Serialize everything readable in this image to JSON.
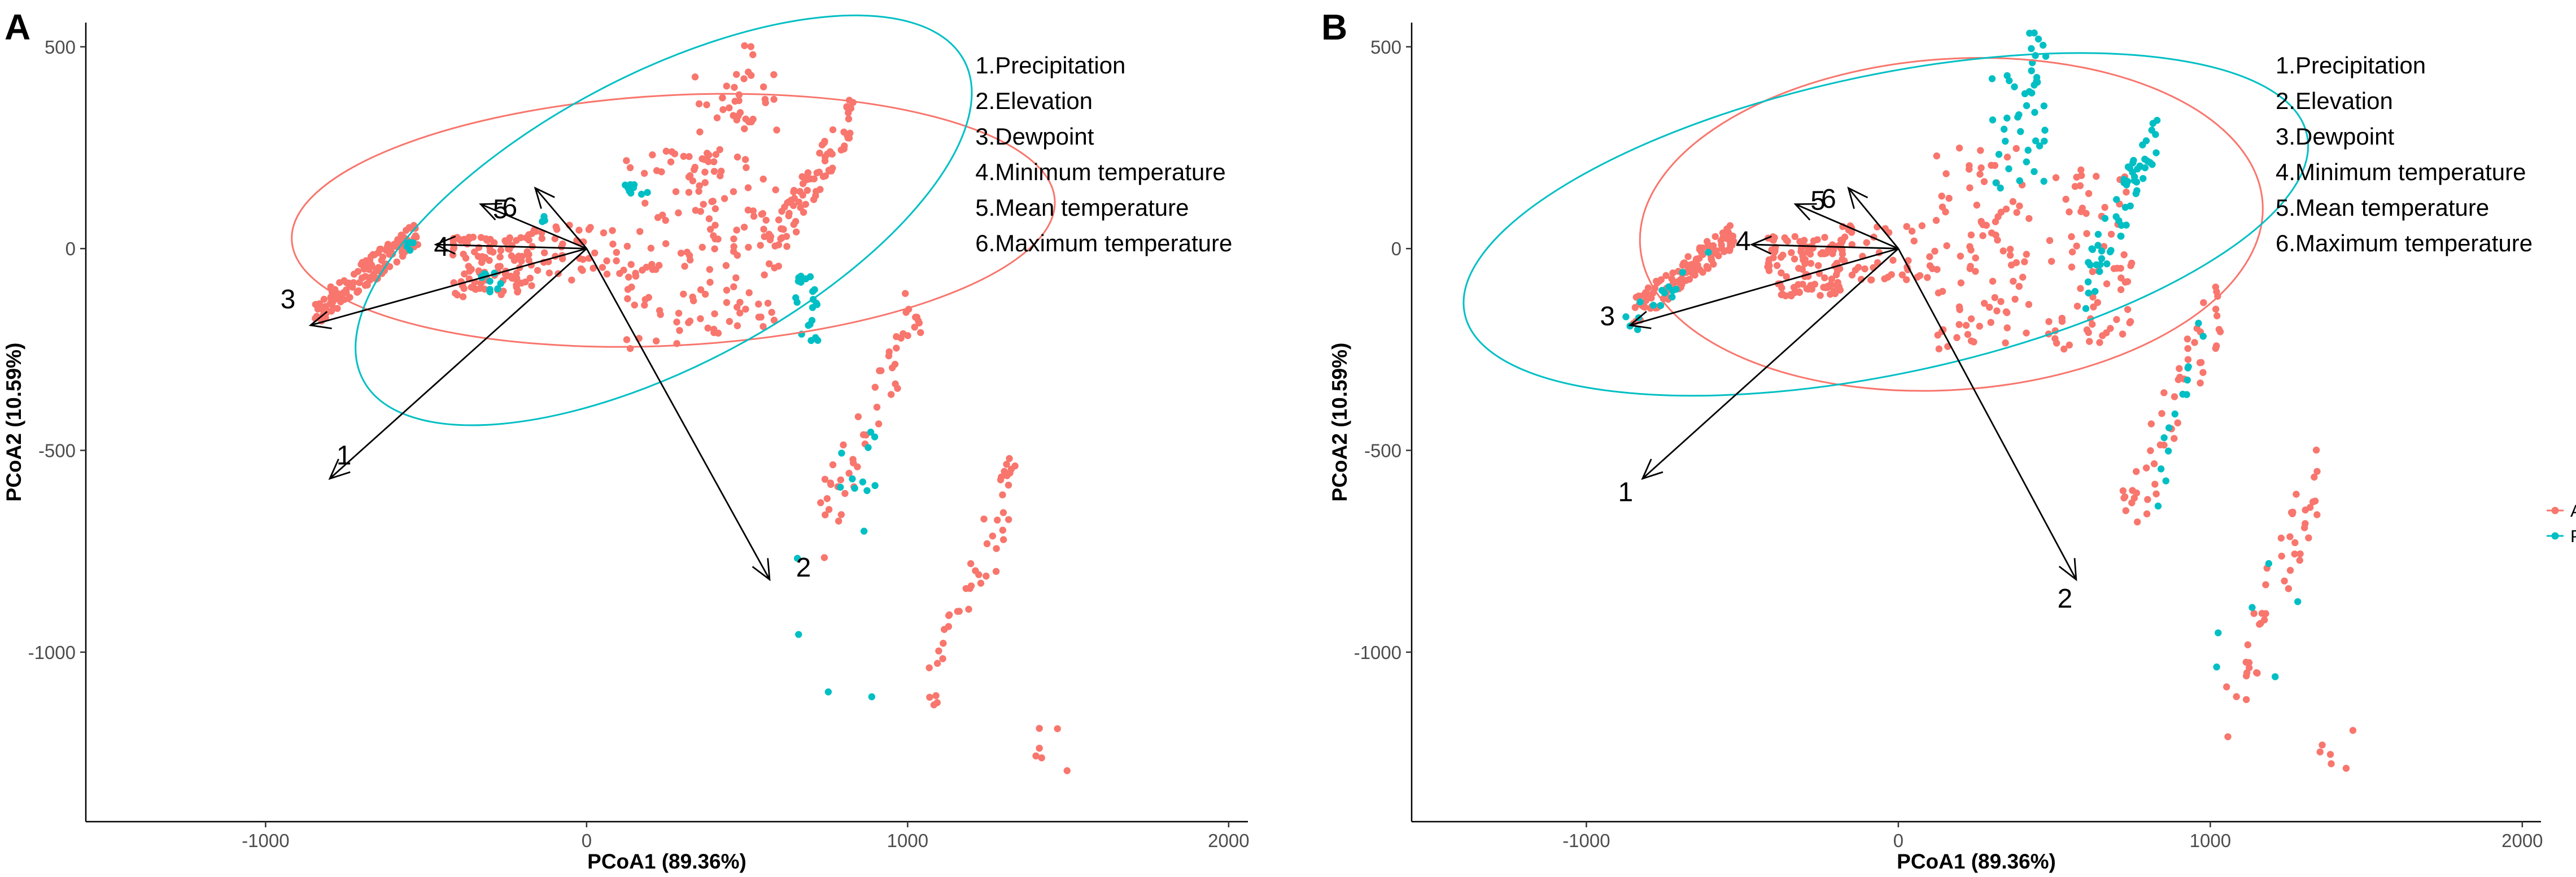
{
  "chart_data": [
    {
      "panel": "A",
      "type": "scatter",
      "xlabel": "PCoA1 (89.36%)",
      "ylabel": "PCoA2 (10.59%)",
      "xlim": [
        -1560,
        2060
      ],
      "ylim": [
        -1420,
        560
      ],
      "xticks": [
        -1000,
        0,
        1000,
        2000
      ],
      "yticks": [
        500,
        0,
        -500,
        -1000
      ],
      "xtick_labels": [
        "-1000",
        "0",
        "1000",
        "2000"
      ],
      "ytick_labels": [
        "500",
        "0",
        "-500",
        "-1000"
      ],
      "variable_legend": [
        "1.Precipitation",
        "2.Elevation",
        "3.Dewpoint",
        "4.Minimum temperature",
        "5.Mean temperature",
        "6.Maximum temperature"
      ],
      "arrows": [
        {
          "label": "1",
          "x": -800,
          "y": -570
        },
        {
          "label": "2",
          "x": 570,
          "y": -820
        },
        {
          "label": "3",
          "x": -860,
          "y": -190
        },
        {
          "label": "4",
          "x": -470,
          "y": 10
        },
        {
          "label": "5",
          "x": -330,
          "y": 110
        },
        {
          "label": "6",
          "x": -160,
          "y": 150
        }
      ],
      "arrow_label_offsets": {
        "1": [
          25,
          -25
        ],
        "2": [
          60,
          -5
        ],
        "3": [
          -40,
          -30
        ],
        "4": [
          10,
          20
        ],
        "5": [
          35,
          25
        ],
        "6": [
          -45,
          50
        ]
      },
      "ellipses": [
        {
          "group": "Absent",
          "cx": 270,
          "cy": 70,
          "rx": 1190,
          "ry": 310,
          "angle": -3
        },
        {
          "group": "Present",
          "cx": 240,
          "cy": 70,
          "rx": 1060,
          "ry": 360,
          "angle": -28
        }
      ],
      "series": [
        {
          "name": "Absent",
          "color": "#F8766D",
          "clusters": [
            {
              "x": [
                -850,
                -520
              ],
              "y": [
                -160,
                40
              ],
              "n": 130,
              "trend": true
            },
            {
              "x": [
                -420,
                -170
              ],
              "y": [
                -120,
                30
              ],
              "n": 110
            },
            {
              "x": [
                -200,
                120
              ],
              "y": [
                -80,
                60
              ],
              "n": 50
            },
            {
              "x": [
                120,
                420
              ],
              "y": [
                -250,
                250
              ],
              "n": 80
            },
            {
              "x": [
                300,
                600
              ],
              "y": [
                -200,
                450
              ],
              "n": 90
            },
            {
              "x": [
                420,
                520
              ],
              "y": [
                300,
                530
              ],
              "n": 20
            },
            {
              "x": [
                580,
                830
              ],
              "y": [
                0,
                330
              ],
              "n": 80,
              "trend": true
            },
            {
              "x": [
                720,
                1050
              ],
              "y": [
                -700,
                -100
              ],
              "n": 50,
              "trend": true
            },
            {
              "x": [
                1050,
                1350
              ],
              "y": [
                -1150,
                -550
              ],
              "n": 45,
              "trend": true
            },
            {
              "x": [
                1350,
                1500
              ],
              "y": [
                -1300,
                -1180
              ],
              "n": 6
            }
          ]
        },
        {
          "name": "Present",
          "color": "#00BFC4",
          "clusters": [
            {
              "x": [
                -580,
                -540
              ],
              "y": [
                -10,
                20
              ],
              "n": 6
            },
            {
              "x": [
                -330,
                -260
              ],
              "y": [
                -110,
                -60
              ],
              "n": 10
            },
            {
              "x": [
                -160,
                -120
              ],
              "y": [
                50,
                80
              ],
              "n": 3
            },
            {
              "x": [
                90,
                200
              ],
              "y": [
                120,
                180
              ],
              "n": 10
            },
            {
              "x": [
                650,
                730
              ],
              "y": [
                -230,
                -60
              ],
              "n": 22
            },
            {
              "x": [
                790,
                900
              ],
              "y": [
                -600,
                -440
              ],
              "n": 10
            },
            {
              "x": [
                640,
                920
              ],
              "y": [
                -1330,
                -700
              ],
              "n": 5
            }
          ]
        }
      ]
    },
    {
      "panel": "B",
      "type": "scatter",
      "xlabel": "PCoA1 (89.36%)",
      "ylabel": "PCoA2 (10.59%)",
      "xlim": [
        -1560,
        2060
      ],
      "ylim": [
        -1420,
        560
      ],
      "xticks": [
        -1000,
        0,
        1000,
        2000
      ],
      "yticks": [
        500,
        0,
        -500,
        -1000
      ],
      "xtick_labels": [
        "-1000",
        "0",
        "1000",
        "2000"
      ],
      "ytick_labels": [
        "500",
        "0",
        "-500",
        "-1000"
      ],
      "variable_legend": [
        "1.Precipitation",
        "2.Elevation",
        "3.Dewpoint",
        "4.Minimum temperature",
        "5.Mean temperature",
        "6.Maximum temperature"
      ],
      "legend": [
        {
          "label": "Absent",
          "color": "#F8766D"
        },
        {
          "label": "Present",
          "color": "#00BFC4"
        }
      ],
      "legend_position": "right",
      "arrows": [
        {
          "label": "1",
          "x": -820,
          "y": -570
        },
        {
          "label": "2",
          "x": 570,
          "y": -820
        },
        {
          "label": "3",
          "x": -860,
          "y": -190
        },
        {
          "label": "4",
          "x": -470,
          "y": 10
        },
        {
          "label": "5",
          "x": -330,
          "y": 110
        },
        {
          "label": "6",
          "x": -160,
          "y": 150
        }
      ],
      "arrow_label_offsets": {
        "1": [
          -30,
          40
        ],
        "2": [
          -20,
          50
        ],
        "3": [
          -40,
          0
        ],
        "4": [
          -15,
          10
        ],
        "5": [
          40,
          10
        ],
        "6": [
          -35,
          35
        ]
      },
      "ellipses": [
        {
          "group": "Absent",
          "cx": 170,
          "cy": 60,
          "rx": 1000,
          "ry": 410,
          "angle": -4
        },
        {
          "group": "Present",
          "cx": -40,
          "cy": 60,
          "rx": 1380,
          "ry": 370,
          "angle": -12
        }
      ],
      "series": [
        {
          "name": "Absent",
          "color": "#F8766D",
          "clusters": [
            {
              "x": [
                -850,
                -520
              ],
              "y": [
                -160,
                40
              ],
              "n": 120,
              "trend": true
            },
            {
              "x": [
                -420,
                -170
              ],
              "y": [
                -120,
                30
              ],
              "n": 110
            },
            {
              "x": [
                -200,
                120
              ],
              "y": [
                -80,
                60
              ],
              "n": 50
            },
            {
              "x": [
                120,
                420
              ],
              "y": [
                -250,
                250
              ],
              "n": 90
            },
            {
              "x": [
                480,
                750
              ],
              "y": [
                -250,
                200
              ],
              "n": 70
            },
            {
              "x": [
                720,
                1050
              ],
              "y": [
                -700,
                -100
              ],
              "n": 50,
              "trend": true
            },
            {
              "x": [
                1050,
                1350
              ],
              "y": [
                -1150,
                -550
              ],
              "n": 45,
              "trend": true
            },
            {
              "x": [
                1350,
                1500
              ],
              "y": [
                -1300,
                -1180
              ],
              "n": 6
            }
          ]
        },
        {
          "name": "Present",
          "color": "#00BFC4",
          "clusters": [
            {
              "x": [
                -880,
                -600
              ],
              "y": [
                -200,
                0
              ],
              "n": 15,
              "trend": true
            },
            {
              "x": [
                300,
                470
              ],
              "y": [
                150,
                450
              ],
              "n": 35
            },
            {
              "x": [
                420,
                480
              ],
              "y": [
                460,
                540
              ],
              "n": 8
            },
            {
              "x": [
                600,
                830
              ],
              "y": [
                -100,
                300
              ],
              "n": 60,
              "trend": true
            },
            {
              "x": [
                820,
                1000
              ],
              "y": [
                -600,
                -150
              ],
              "n": 14,
              "trend": true
            },
            {
              "x": [
                1000,
                1300
              ],
              "y": [
                -1100,
                -700
              ],
              "n": 6
            }
          ]
        }
      ]
    }
  ]
}
